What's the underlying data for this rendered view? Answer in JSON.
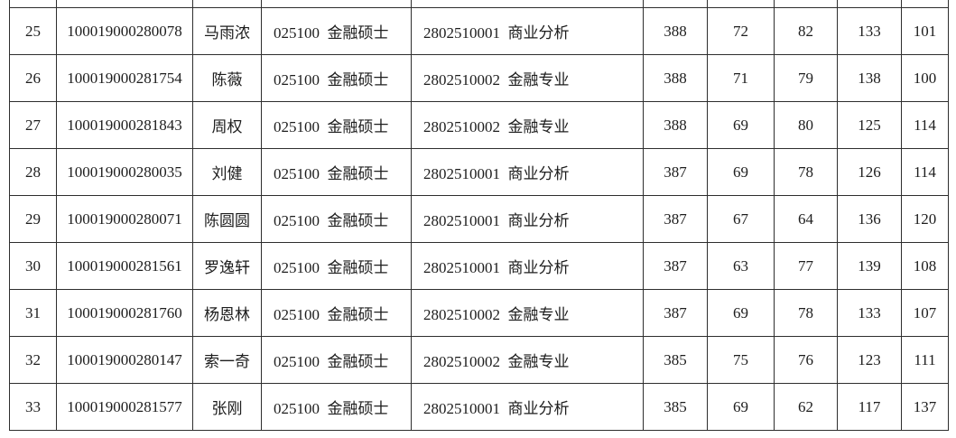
{
  "page": {
    "background": "#ffffff",
    "border_color": "#2e2e2e",
    "text_color": "#1d1d1d"
  },
  "table": {
    "rows": [
      {
        "index": "25",
        "exam_id": "100019000280078",
        "name": "马雨浓",
        "major": "025100  金融硕士",
        "direction": "2802510001  商业分析",
        "total": "388",
        "score1": "72",
        "score2": "82",
        "score3": "133",
        "score4": "101"
      },
      {
        "index": "26",
        "exam_id": "100019000281754",
        "name": "陈薇",
        "major": "025100  金融硕士",
        "direction": "2802510002  金融专业",
        "total": "388",
        "score1": "71",
        "score2": "79",
        "score3": "138",
        "score4": "100"
      },
      {
        "index": "27",
        "exam_id": "100019000281843",
        "name": "周权",
        "major": "025100  金融硕士",
        "direction": "2802510002  金融专业",
        "total": "388",
        "score1": "69",
        "score2": "80",
        "score3": "125",
        "score4": "114"
      },
      {
        "index": "28",
        "exam_id": "100019000280035",
        "name": "刘健",
        "major": "025100  金融硕士",
        "direction": "2802510001  商业分析",
        "total": "387",
        "score1": "69",
        "score2": "78",
        "score3": "126",
        "score4": "114"
      },
      {
        "index": "29",
        "exam_id": "100019000280071",
        "name": "陈圆圆",
        "major": "025100  金融硕士",
        "direction": "2802510001  商业分析",
        "total": "387",
        "score1": "67",
        "score2": "64",
        "score3": "136",
        "score4": "120"
      },
      {
        "index": "30",
        "exam_id": "100019000281561",
        "name": "罗逸轩",
        "major": "025100  金融硕士",
        "direction": "2802510001  商业分析",
        "total": "387",
        "score1": "63",
        "score2": "77",
        "score3": "139",
        "score4": "108"
      },
      {
        "index": "31",
        "exam_id": "100019000281760",
        "name": "杨恩林",
        "major": "025100  金融硕士",
        "direction": "2802510002  金融专业",
        "total": "387",
        "score1": "69",
        "score2": "78",
        "score3": "133",
        "score4": "107"
      },
      {
        "index": "32",
        "exam_id": "100019000280147",
        "name": "索一奇",
        "major": "025100  金融硕士",
        "direction": "2802510002  金融专业",
        "total": "385",
        "score1": "75",
        "score2": "76",
        "score3": "123",
        "score4": "111"
      },
      {
        "index": "33",
        "exam_id": "100019000281577",
        "name": "张刚",
        "major": "025100  金融硕士",
        "direction": "2802510001  商业分析",
        "total": "385",
        "score1": "69",
        "score2": "62",
        "score3": "117",
        "score4": "137"
      }
    ]
  }
}
